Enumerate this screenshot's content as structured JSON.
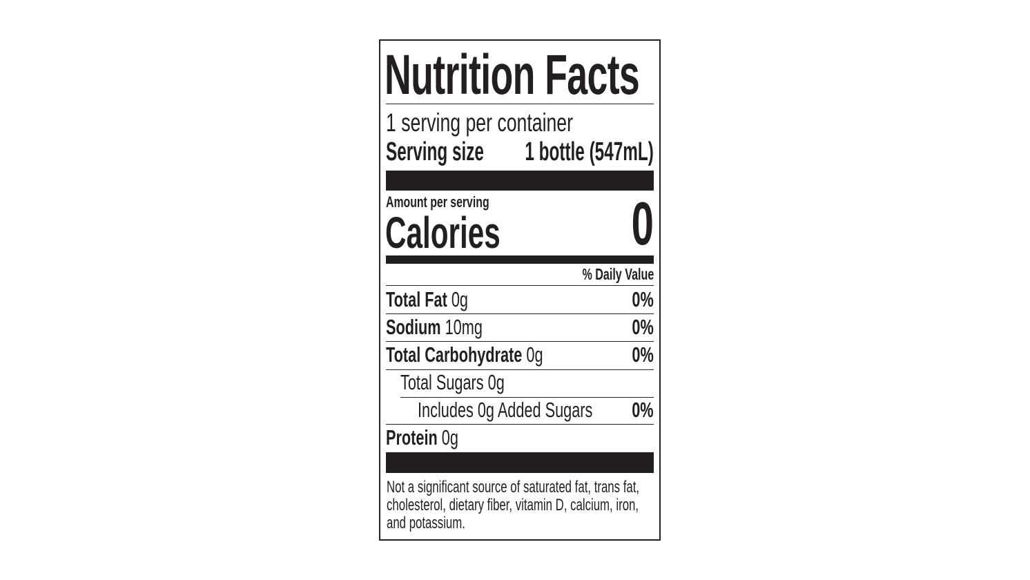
{
  "title": "Nutrition Facts",
  "servings_per_container": "1 serving per container",
  "serving_size": {
    "label": "Serving size",
    "value": "1 bottle (547mL)"
  },
  "calories": {
    "amount_label": "Amount per serving",
    "label": "Calories",
    "value": "0"
  },
  "daily_value_header": "% Daily Value",
  "nutrients": [
    {
      "name": "Total Fat",
      "amount": "0g",
      "dv": "0%"
    },
    {
      "name": "Sodium",
      "amount": "10mg",
      "dv": "0%"
    },
    {
      "name": "Total Carbohydrate",
      "amount": "0g",
      "dv": "0%"
    },
    {
      "name": "Total Sugars 0g",
      "amount": "",
      "dv": ""
    },
    {
      "name": "Includes 0g Added Sugars",
      "amount": "",
      "dv": "0%"
    },
    {
      "name": "Protein",
      "amount": "0g",
      "dv": ""
    }
  ],
  "footnote": [
    "Not a significant source of saturated fat, trans fat,",
    "cholesterol, dietary fiber, vitamin D, calcium, iron,",
    "and potassium."
  ],
  "colors": {
    "ink": "#231f20",
    "background": "#ffffff"
  }
}
